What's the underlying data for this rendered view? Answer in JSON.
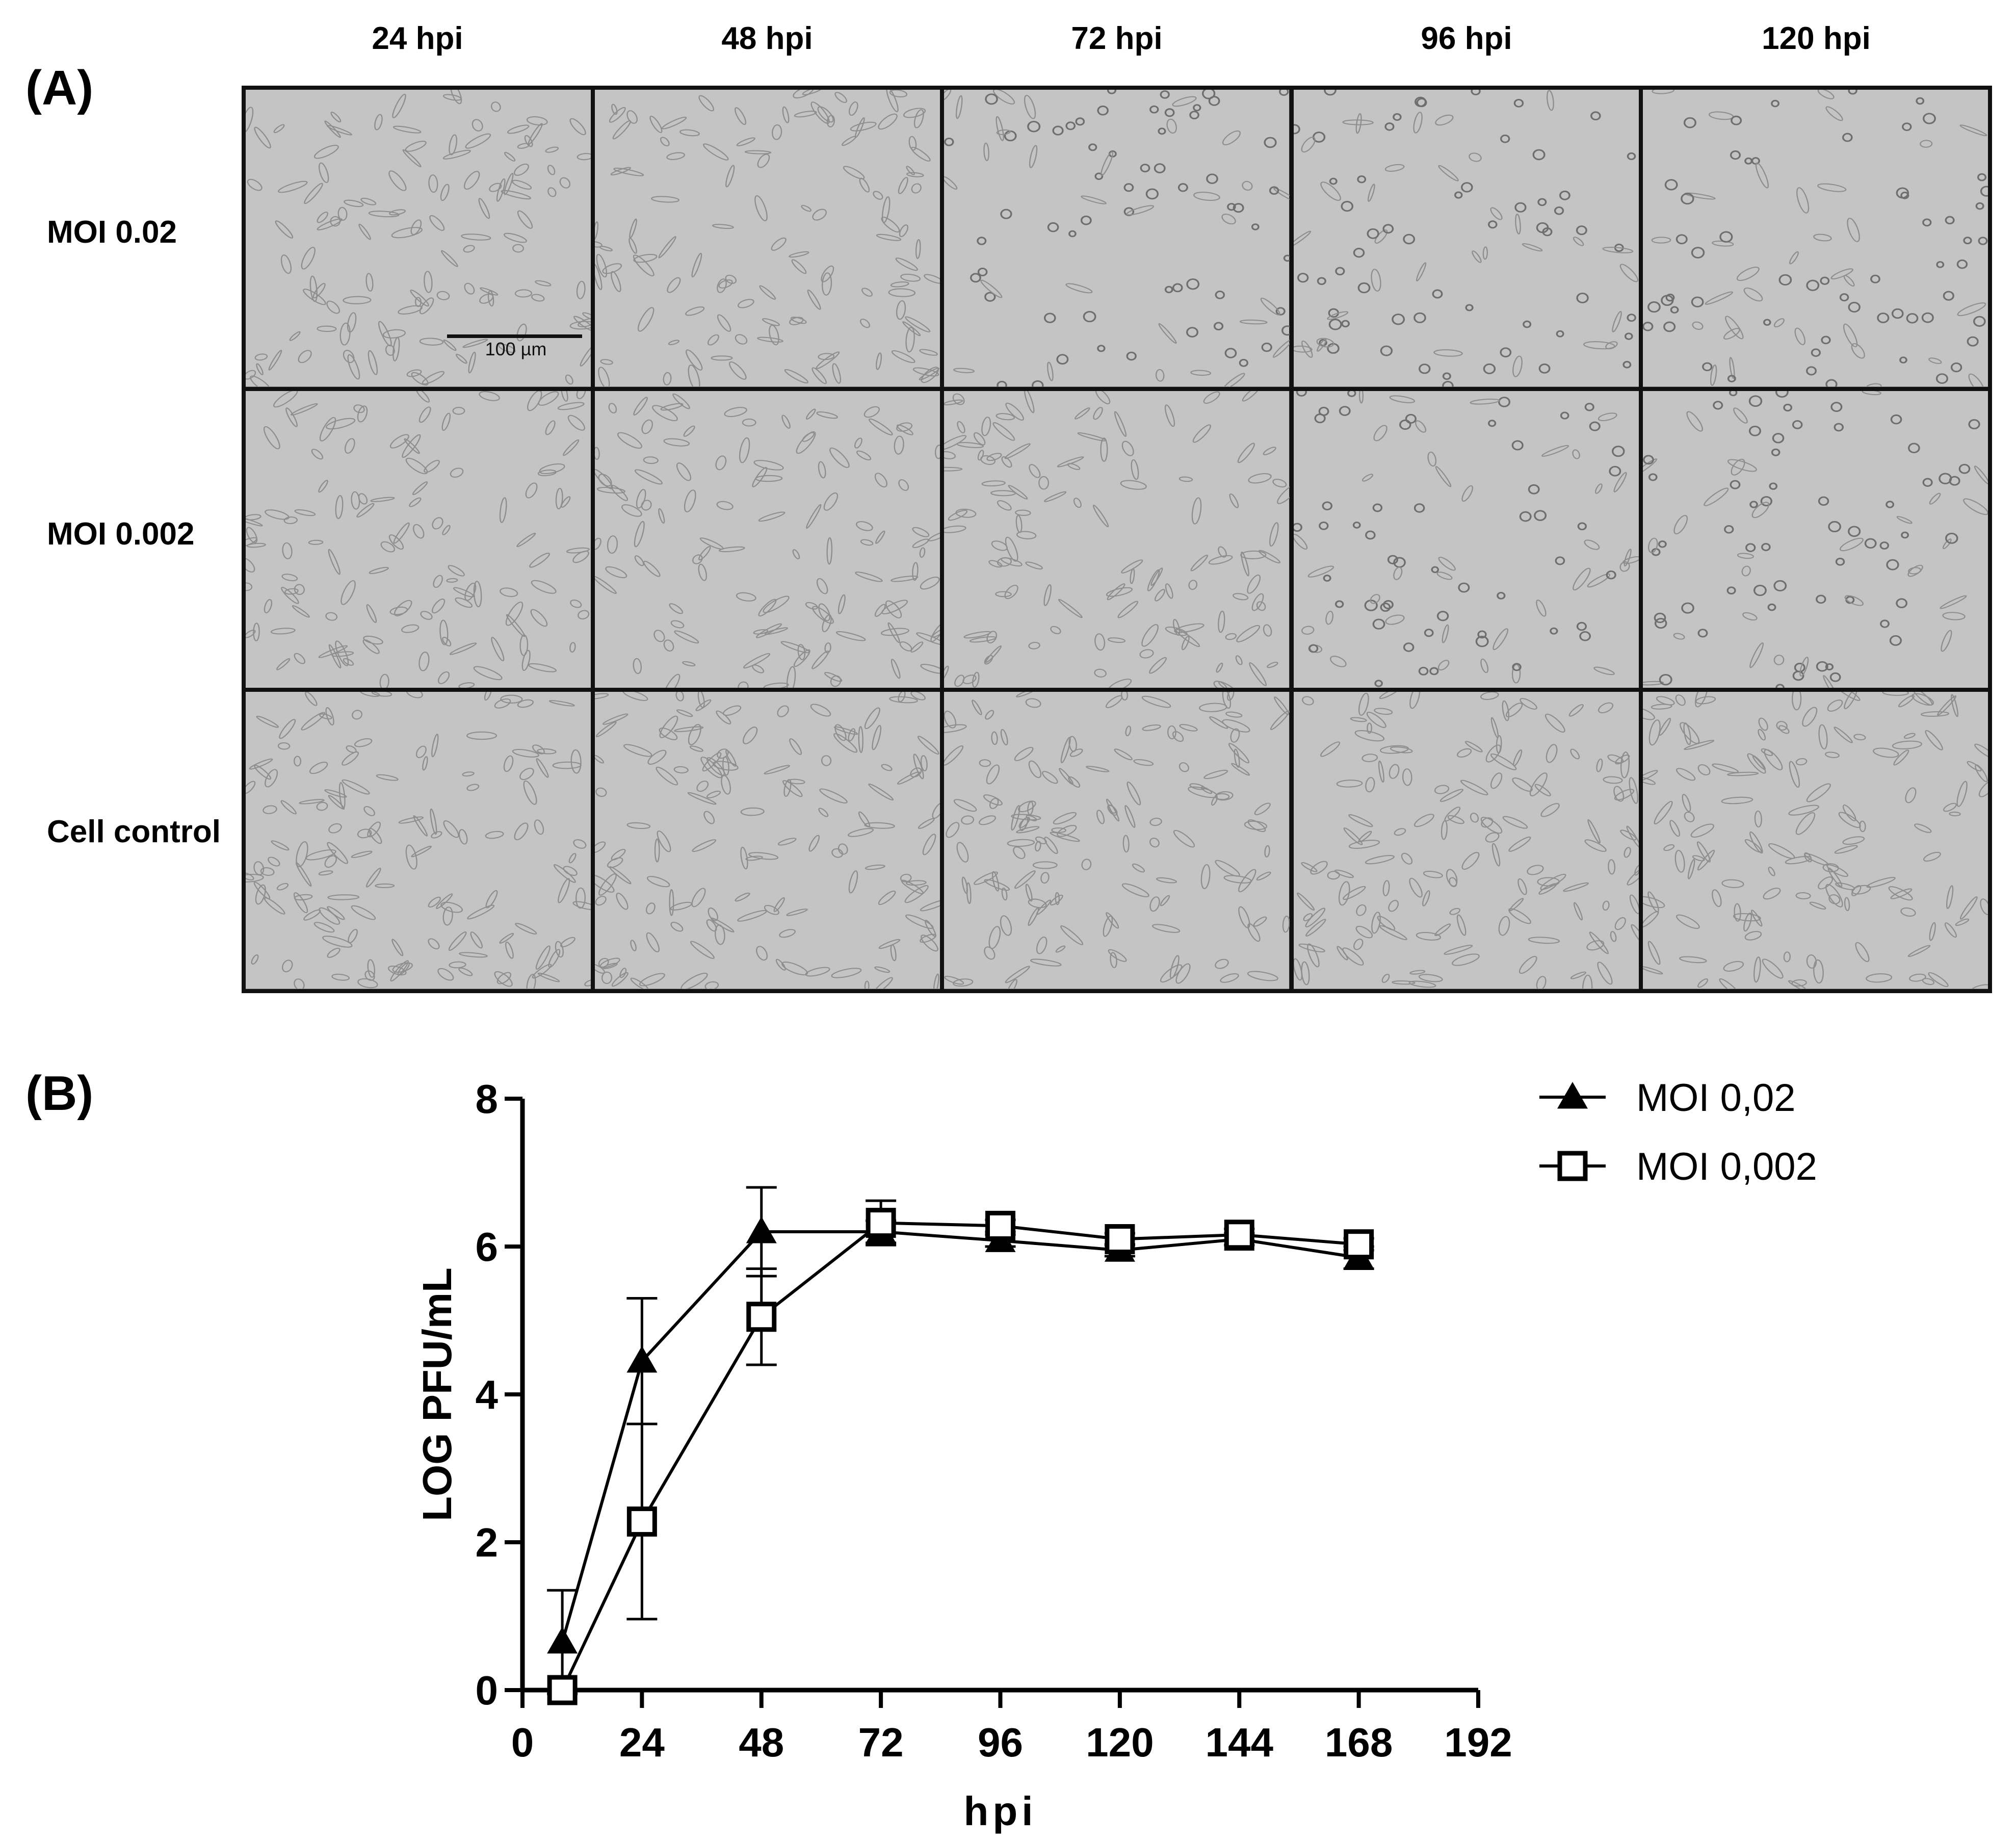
{
  "panel_a": {
    "label": "(A)",
    "columns": [
      "24 hpi",
      "48 hpi",
      "72 hpi",
      "96 hpi",
      "120 hpi"
    ],
    "rows": [
      "MOI 0.02",
      "MOI 0.002",
      "Cell control"
    ],
    "scale_bar_label": "100 µm"
  },
  "panel_b": {
    "label": "(B)"
  },
  "colors": {
    "micrograph_bg": "#c4c4c4",
    "micrograph_cell": "#8e8e8e",
    "grid_border": "#111111",
    "line": "#000000"
  },
  "chart_data": {
    "type": "line",
    "xlabel": "hpi",
    "ylabel": "LOG PFU/mL",
    "xlim": [
      0,
      192
    ],
    "ylim": [
      0,
      8
    ],
    "xticks": [
      0,
      24,
      48,
      72,
      96,
      120,
      144,
      168,
      192
    ],
    "yticks": [
      0,
      2,
      4,
      6,
      8
    ],
    "legend_position": "top-right",
    "series": [
      {
        "name": "MOI 0,02",
        "marker": "filled-triangle",
        "x": [
          8,
          24,
          48,
          72,
          96,
          120,
          144,
          168
        ],
        "y": [
          0.65,
          4.45,
          6.2,
          6.2,
          6.08,
          5.95,
          6.1,
          5.85
        ],
        "err": [
          0.7,
          0.85,
          0.6,
          0.15,
          0.08,
          0.08,
          0.08,
          0.15
        ]
      },
      {
        "name": "MOI 0,002",
        "marker": "open-square",
        "x": [
          8,
          24,
          48,
          72,
          96,
          120,
          144,
          168
        ],
        "y": [
          0.0,
          2.28,
          5.05,
          6.32,
          6.28,
          6.1,
          6.16,
          6.03
        ],
        "err": [
          0.0,
          1.32,
          0.65,
          0.3,
          0.08,
          0.08,
          0.08,
          0.08
        ]
      }
    ]
  }
}
